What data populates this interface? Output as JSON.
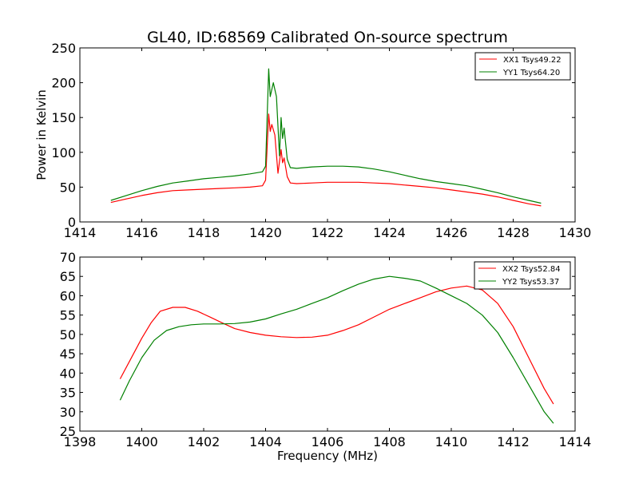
{
  "chart_data": {
    "title": "GL40, ID:68569 Calibrated On-source spectrum",
    "charts": [
      {
        "type": "line",
        "xlabel": "",
        "ylabel": "Power in Kelvin",
        "xlim": [
          1414,
          1430
        ],
        "ylim": [
          0,
          250
        ],
        "xticks": [
          "1414",
          "1416",
          "1418",
          "1420",
          "1422",
          "1424",
          "1426",
          "1428",
          "1430"
        ],
        "yticks": [
          "0",
          "50",
          "100",
          "150",
          "200",
          "250"
        ],
        "legend_position": "top-right",
        "legend": [
          "XX1 Tsys49.22",
          "YY1 Tsys64.20"
        ],
        "series": [
          {
            "name": "XX1 Tsys49.22",
            "color": "#ff0000",
            "points": [
              [
                1415.0,
                28
              ],
              [
                1415.5,
                33
              ],
              [
                1416.0,
                38
              ],
              [
                1416.5,
                42
              ],
              [
                1417.0,
                45
              ],
              [
                1417.5,
                46
              ],
              [
                1418.0,
                47
              ],
              [
                1418.5,
                48
              ],
              [
                1419.0,
                49
              ],
              [
                1419.5,
                50
              ],
              [
                1419.9,
                52
              ],
              [
                1420.0,
                60
              ],
              [
                1420.1,
                155
              ],
              [
                1420.15,
                130
              ],
              [
                1420.2,
                140
              ],
              [
                1420.3,
                125
              ],
              [
                1420.4,
                70
              ],
              [
                1420.5,
                104
              ],
              [
                1420.55,
                85
              ],
              [
                1420.6,
                92
              ],
              [
                1420.7,
                65
              ],
              [
                1420.8,
                56
              ],
              [
                1421.0,
                55
              ],
              [
                1421.5,
                56
              ],
              [
                1422.0,
                57
              ],
              [
                1422.5,
                57
              ],
              [
                1423.0,
                57
              ],
              [
                1423.5,
                56
              ],
              [
                1424.0,
                55
              ],
              [
                1424.5,
                53
              ],
              [
                1425.0,
                51
              ],
              [
                1425.5,
                49
              ],
              [
                1426.0,
                46
              ],
              [
                1426.5,
                43
              ],
              [
                1427.0,
                40
              ],
              [
                1427.5,
                36
              ],
              [
                1428.0,
                31
              ],
              [
                1428.5,
                26
              ],
              [
                1428.9,
                23
              ]
            ]
          },
          {
            "name": "YY1 Tsys64.20",
            "color": "#008000",
            "points": [
              [
                1415.0,
                31
              ],
              [
                1415.5,
                38
              ],
              [
                1416.0,
                45
              ],
              [
                1416.5,
                51
              ],
              [
                1417.0,
                56
              ],
              [
                1417.5,
                59
              ],
              [
                1418.0,
                62
              ],
              [
                1418.5,
                64
              ],
              [
                1419.0,
                66
              ],
              [
                1419.5,
                69
              ],
              [
                1419.9,
                72
              ],
              [
                1420.0,
                80
              ],
              [
                1420.1,
                220
              ],
              [
                1420.15,
                180
              ],
              [
                1420.25,
                200
              ],
              [
                1420.35,
                180
              ],
              [
                1420.45,
                95
              ],
              [
                1420.5,
                150
              ],
              [
                1420.55,
                120
              ],
              [
                1420.6,
                135
              ],
              [
                1420.7,
                90
              ],
              [
                1420.8,
                78
              ],
              [
                1421.0,
                77
              ],
              [
                1421.5,
                79
              ],
              [
                1422.0,
                80
              ],
              [
                1422.5,
                80
              ],
              [
                1423.0,
                79
              ],
              [
                1423.5,
                76
              ],
              [
                1424.0,
                72
              ],
              [
                1424.5,
                67
              ],
              [
                1425.0,
                62
              ],
              [
                1425.5,
                58
              ],
              [
                1426.0,
                55
              ],
              [
                1426.5,
                52
              ],
              [
                1427.0,
                47
              ],
              [
                1427.5,
                42
              ],
              [
                1428.0,
                36
              ],
              [
                1428.5,
                31
              ],
              [
                1428.9,
                27
              ]
            ]
          }
        ]
      },
      {
        "type": "line",
        "xlabel": "Frequency (MHz)",
        "ylabel": "",
        "xlim": [
          1398,
          1414
        ],
        "ylim": [
          25,
          70
        ],
        "xticks": [
          "1398",
          "1400",
          "1402",
          "1404",
          "1406",
          "1408",
          "1410",
          "1412",
          "1414"
        ],
        "yticks": [
          "25",
          "30",
          "35",
          "40",
          "45",
          "50",
          "55",
          "60",
          "65",
          "70"
        ],
        "legend_position": "top-right",
        "legend": [
          "XX2 Tsys52.84",
          "YY2 Tsys53.37"
        ],
        "series": [
          {
            "name": "XX2 Tsys52.84",
            "color": "#ff0000",
            "points": [
              [
                1399.3,
                38.5
              ],
              [
                1399.6,
                43
              ],
              [
                1400.0,
                49
              ],
              [
                1400.3,
                53
              ],
              [
                1400.6,
                56
              ],
              [
                1401.0,
                57
              ],
              [
                1401.4,
                57
              ],
              [
                1401.8,
                56
              ],
              [
                1402.2,
                54.5
              ],
              [
                1402.6,
                53
              ],
              [
                1403.0,
                51.5
              ],
              [
                1403.5,
                50.5
              ],
              [
                1404.0,
                49.8
              ],
              [
                1404.5,
                49.4
              ],
              [
                1405.0,
                49.2
              ],
              [
                1405.5,
                49.3
              ],
              [
                1406.0,
                49.8
              ],
              [
                1406.5,
                51
              ],
              [
                1407.0,
                52.5
              ],
              [
                1407.5,
                54.5
              ],
              [
                1408.0,
                56.5
              ],
              [
                1408.5,
                58
              ],
              [
                1409.0,
                59.5
              ],
              [
                1409.5,
                61
              ],
              [
                1410.0,
                62
              ],
              [
                1410.5,
                62.5
              ],
              [
                1411.0,
                61.5
              ],
              [
                1411.5,
                58
              ],
              [
                1412.0,
                52
              ],
              [
                1412.5,
                44
              ],
              [
                1413.0,
                36
              ],
              [
                1413.3,
                32
              ]
            ]
          },
          {
            "name": "YY2 Tsys53.37",
            "color": "#008000",
            "points": [
              [
                1399.3,
                33
              ],
              [
                1399.6,
                38
              ],
              [
                1400.0,
                44
              ],
              [
                1400.4,
                48.5
              ],
              [
                1400.8,
                51
              ],
              [
                1401.2,
                52
              ],
              [
                1401.6,
                52.5
              ],
              [
                1402.0,
                52.7
              ],
              [
                1402.5,
                52.7
              ],
              [
                1403.0,
                52.8
              ],
              [
                1403.5,
                53.2
              ],
              [
                1404.0,
                54
              ],
              [
                1404.5,
                55.3
              ],
              [
                1405.0,
                56.5
              ],
              [
                1405.5,
                58
              ],
              [
                1406.0,
                59.5
              ],
              [
                1406.5,
                61.3
              ],
              [
                1407.0,
                63
              ],
              [
                1407.5,
                64.3
              ],
              [
                1408.0,
                65
              ],
              [
                1408.5,
                64.5
              ],
              [
                1409.0,
                63.8
              ],
              [
                1409.5,
                62
              ],
              [
                1410.0,
                60
              ],
              [
                1410.5,
                58
              ],
              [
                1411.0,
                55
              ],
              [
                1411.5,
                50.5
              ],
              [
                1412.0,
                44
              ],
              [
                1412.5,
                37
              ],
              [
                1413.0,
                30
              ],
              [
                1413.3,
                27
              ]
            ]
          }
        ]
      }
    ]
  }
}
